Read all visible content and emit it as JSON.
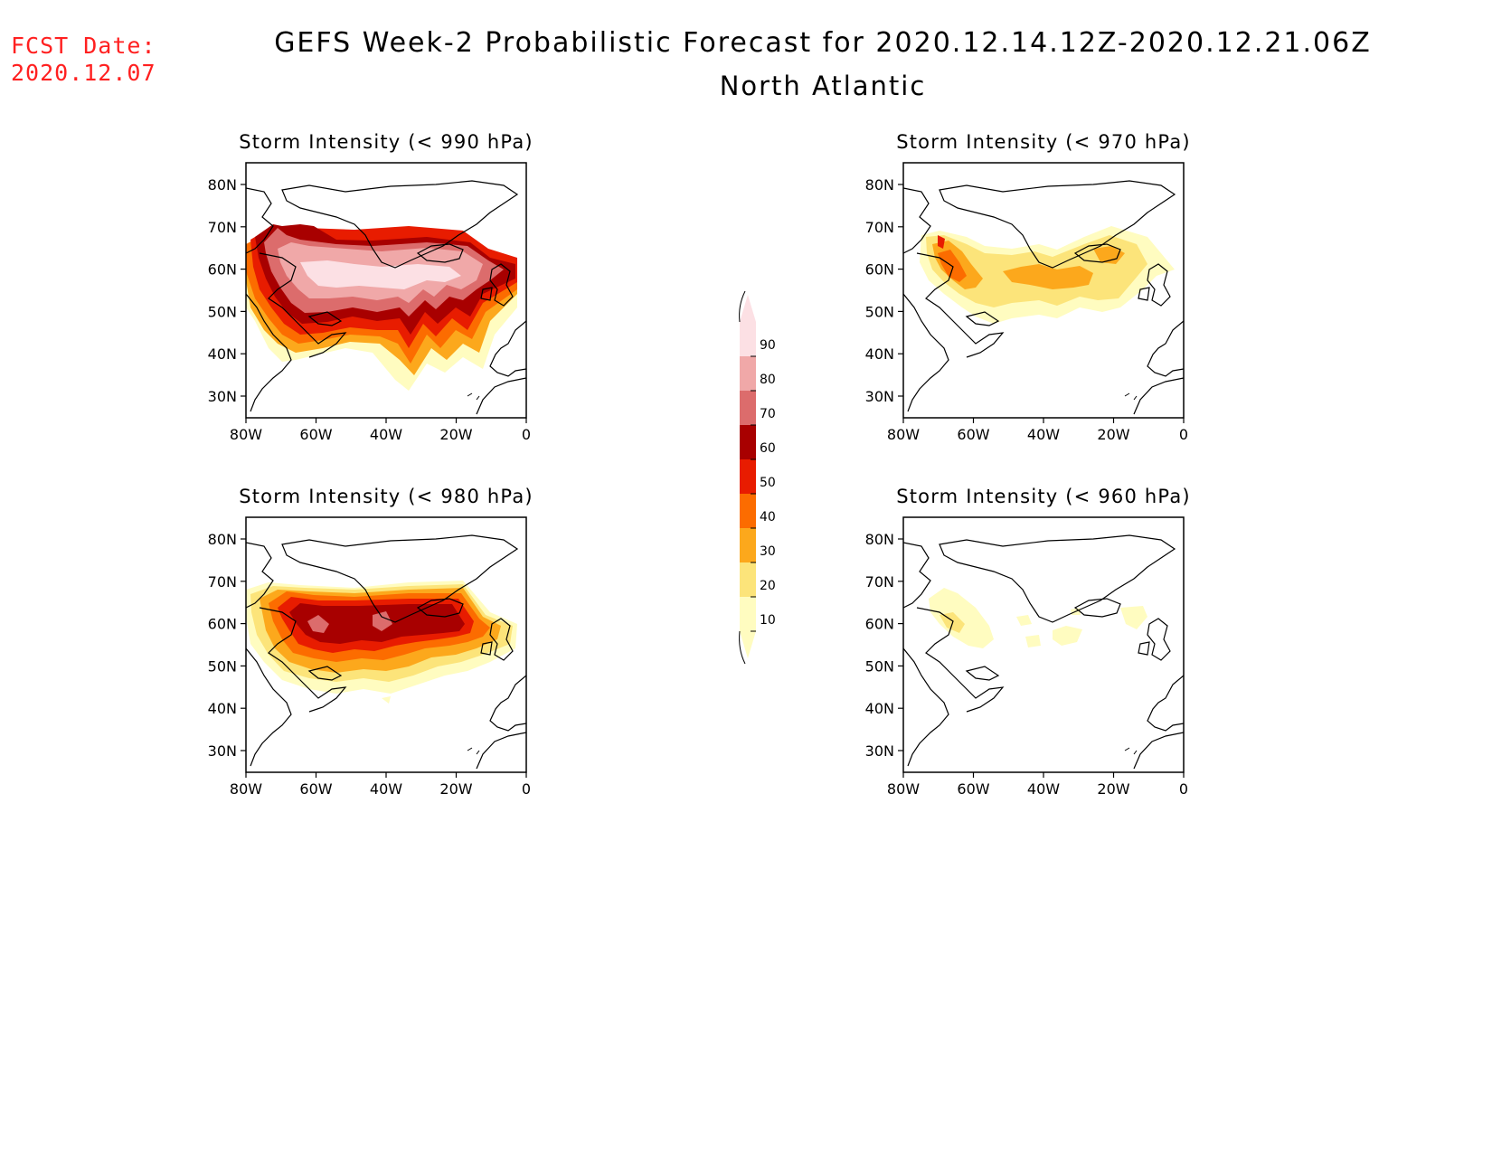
{
  "fcst": {
    "label": "FCST Date:",
    "date": "2020.12.07"
  },
  "title": "GEFS Week-2 Probabilistic Forecast for 2020.12.14.12Z-2020.12.21.06Z",
  "region": "North Atlantic",
  "axes": {
    "lat_ticks": [
      "80N",
      "70N",
      "60N",
      "50N",
      "40N",
      "30N"
    ],
    "lon_ticks": [
      "80W",
      "60W",
      "40W",
      "20W",
      "0"
    ]
  },
  "panels": [
    {
      "title": "Storm Intensity (< 990 hPa)",
      "coverage": "extensive"
    },
    {
      "title": "Storm Intensity (< 970 hPa)",
      "coverage": "moderate"
    },
    {
      "title": "Storm Intensity (< 980 hPa)",
      "coverage": "large"
    },
    {
      "title": "Storm Intensity (< 960 hPa)",
      "coverage": "sparse"
    }
  ],
  "legend": {
    "levels": [
      "90",
      "80",
      "70",
      "60",
      "50",
      "40",
      "30",
      "20",
      "10"
    ],
    "colors": {
      "p10": "#fffcc0",
      "p20": "#fce47a",
      "p30": "#fca81c",
      "p40": "#fc6c00",
      "p50": "#e81c00",
      "p60": "#a80000",
      "p70": "#dc6c6c",
      "p80": "#f0a8a8",
      "p90": "#fce0e4"
    }
  }
}
